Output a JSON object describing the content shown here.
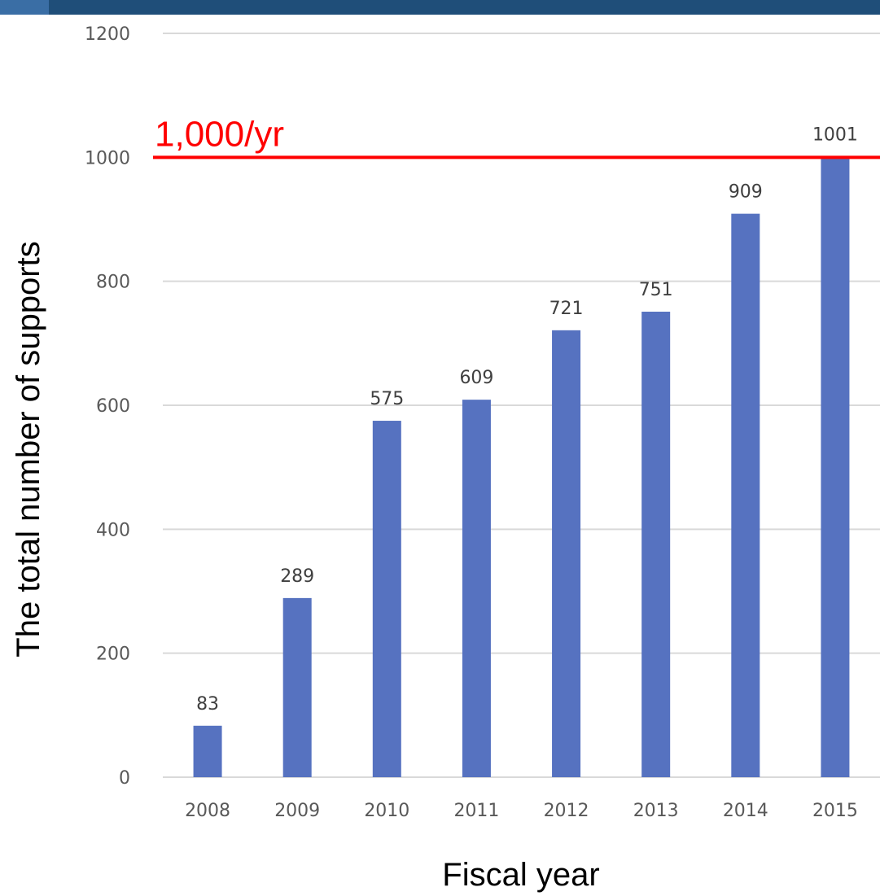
{
  "theme": {
    "banner_color": "#1f4e79",
    "banner_tab_color": "#3a6ea5",
    "bar_color": "#5672c0",
    "grid_color": "#d9d9d9",
    "reference_color": "#ff0000"
  },
  "chart_data": {
    "type": "bar",
    "title": "",
    "xlabel": "Fiscal year",
    "ylabel": "The total number of supports",
    "categories": [
      "2008",
      "2009",
      "2010",
      "2011",
      "2012",
      "2013",
      "2014",
      "2015"
    ],
    "values": [
      83,
      289,
      575,
      609,
      721,
      751,
      909,
      1001
    ],
    "value_labels": [
      "83",
      "289",
      "575",
      "609",
      "721",
      "751",
      "909",
      "1001"
    ],
    "ylim": [
      0,
      1200
    ],
    "yticks": [
      0,
      200,
      400,
      600,
      800,
      1000,
      1200
    ],
    "ytick_labels": [
      "0",
      "200",
      "400",
      "600",
      "800",
      "1000",
      "1200"
    ],
    "grid": true,
    "legend": "none",
    "reference_line": {
      "value": 1000,
      "label": "1,000/yr"
    }
  }
}
